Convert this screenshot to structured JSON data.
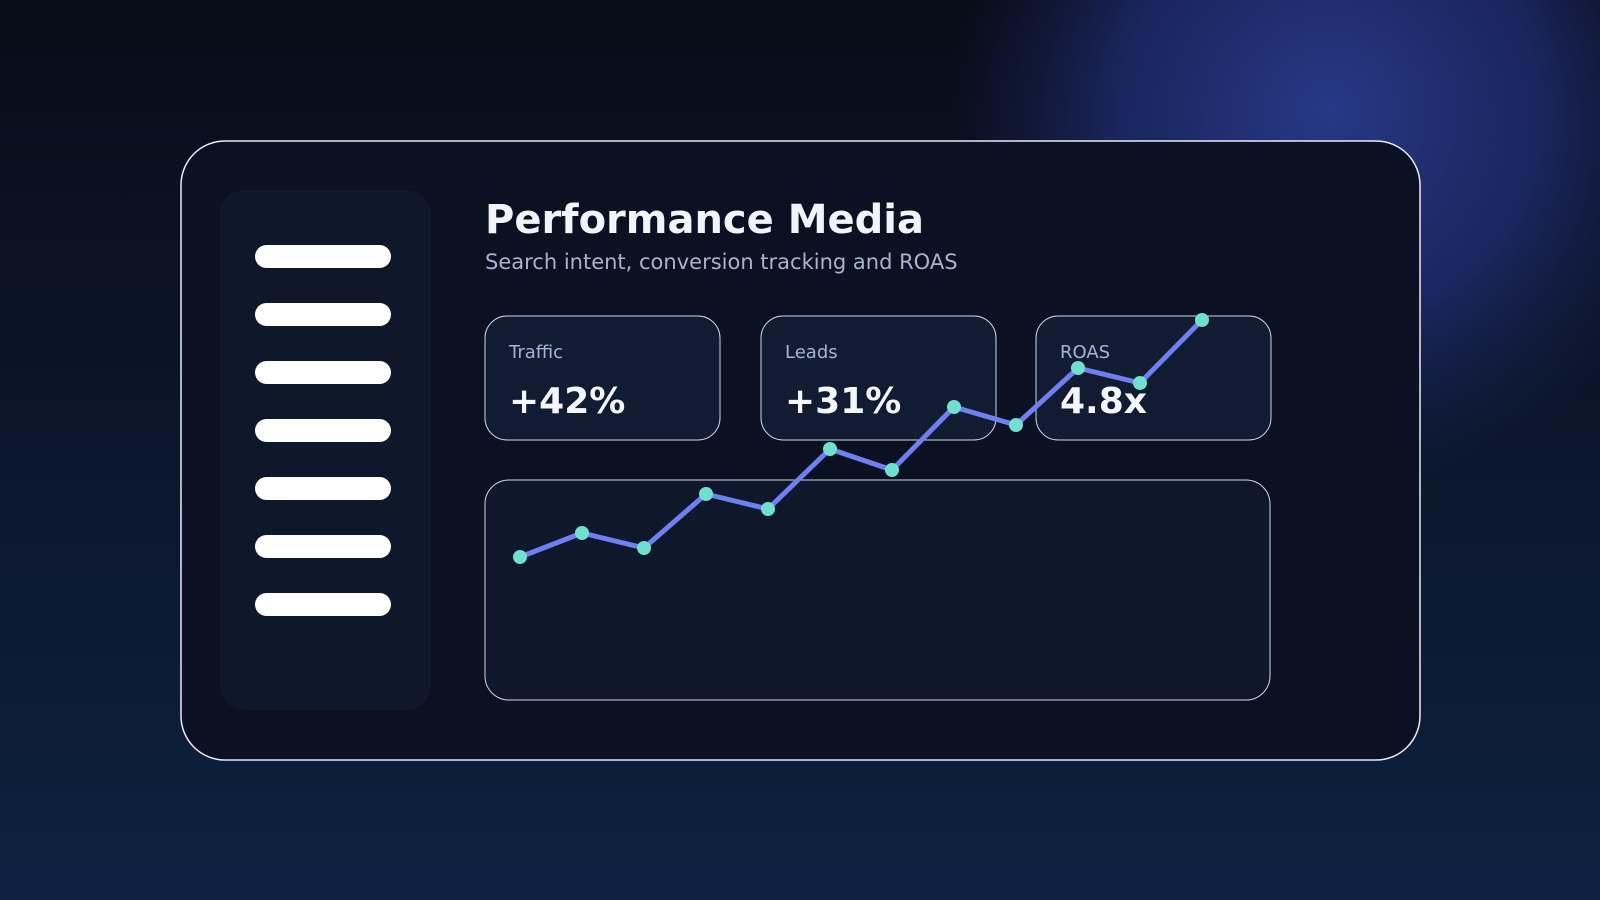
{
  "header": {
    "title": "Performance Media",
    "subtitle": "Search intent, conversion tracking and ROAS"
  },
  "kpis": [
    {
      "label": "Traffic",
      "value": "+42%"
    },
    {
      "label": "Leads",
      "value": "+31%"
    },
    {
      "label": "ROAS",
      "value": "4.8x"
    }
  ],
  "chart_data": {
    "type": "line",
    "values": [
      21,
      29,
      24,
      42,
      37,
      57,
      50,
      71,
      65,
      84,
      79,
      100
    ],
    "ylim": [
      0,
      100
    ],
    "line_color": "#6f7ff0",
    "marker_color": "#6fe0d0"
  }
}
